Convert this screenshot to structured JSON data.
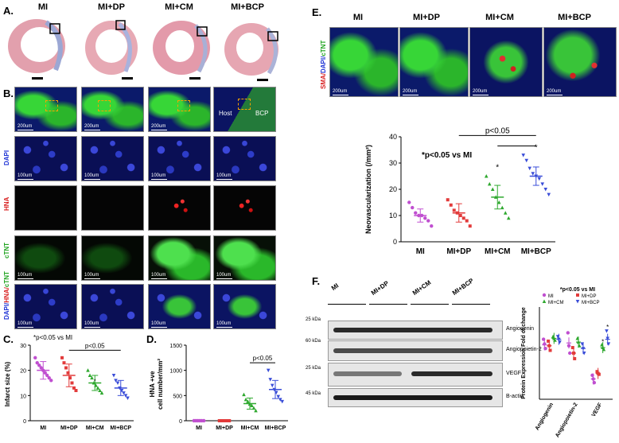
{
  "panelA": {
    "letter": "A.",
    "groups": [
      "MI",
      "MI+DP",
      "MI+CM",
      "MI+BCP"
    ]
  },
  "panelB": {
    "letter": "B.",
    "scale_200": "200um",
    "scale_100": "100um",
    "host_label": "Host",
    "bcp_label": "BCP",
    "rows": [
      "DAPI",
      "HNA",
      "cTNT"
    ],
    "merge_label_parts": [
      "DAPI/",
      "HNA/",
      "cTNT"
    ]
  },
  "panelC": {
    "letter": "C.",
    "note": "*p<0.05 vs MI",
    "pval": "p<0.05",
    "star": "*"
  },
  "panelD": {
    "letter": "D.",
    "pval": "p<0.05"
  },
  "panelE": {
    "letter": "E.",
    "groups": [
      "MI",
      "MI+DP",
      "MI+CM",
      "MI+BCP"
    ],
    "side_label_parts": [
      "SMA/",
      "DAPI/",
      "cTNT"
    ],
    "scale": "200um",
    "note": "*p<0.05 vs MI",
    "pval": "p<0.05",
    "star": "*"
  },
  "panelF": {
    "letter": "F.",
    "lanes": [
      "MI",
      "MI+DP",
      "MI+CM",
      "MI+BCP"
    ],
    "markers": [
      "25 kDa",
      "60 kDa",
      "25 kDa",
      "45 kDa"
    ],
    "bands": [
      "Angiogenin",
      "Angiopoietin-2",
      "VEGF",
      "B-actin"
    ],
    "note": "*p<0.05 vs MI",
    "star": "*"
  },
  "chart_data": [
    {
      "type": "scatter",
      "panel": "C",
      "ylabel": "Infarct size (%)",
      "categories": [
        "MI",
        "MI+DP",
        "MI+CM",
        "MI+BCP"
      ],
      "ylim": [
        0,
        30
      ],
      "yticks": [
        0,
        10,
        20,
        30
      ],
      "colors": [
        "#c04fd0",
        "#e23b3b",
        "#2ea82e",
        "#3a4dd8"
      ],
      "mean": [
        20,
        18,
        15,
        13
      ],
      "sd": [
        3.5,
        4.5,
        3,
        3
      ],
      "points": [
        [
          25,
          23,
          22,
          21,
          20,
          19,
          18,
          17,
          16
        ],
        [
          25,
          23,
          21,
          19,
          17,
          15,
          13,
          12
        ],
        [
          20,
          18,
          17,
          15,
          14,
          13,
          12,
          11
        ],
        [
          18,
          16,
          15,
          13,
          12,
          11,
          10,
          9
        ]
      ]
    },
    {
      "type": "scatter",
      "panel": "D",
      "ylabel_lines": [
        "HNA +ve",
        "cell number/mm²"
      ],
      "categories": [
        "MI",
        "MI+DP",
        "MI+CM",
        "MI+BCP"
      ],
      "ylim": [
        0,
        1500
      ],
      "yticks": [
        0,
        500,
        1000,
        1500
      ],
      "colors": [
        "#c04fd0",
        "#e23b3b",
        "#2ea82e",
        "#3a4dd8"
      ],
      "mean": [
        0,
        0,
        340,
        620
      ],
      "sd": [
        0,
        0,
        110,
        180
      ],
      "points": [
        [
          0,
          0,
          0,
          0,
          0,
          0
        ],
        [
          0,
          0,
          0,
          0,
          0,
          0
        ],
        [
          520,
          420,
          380,
          330,
          300,
          250,
          200
        ],
        [
          1000,
          820,
          700,
          620,
          560,
          480,
          420,
          380
        ]
      ]
    },
    {
      "type": "scatter",
      "panel": "E",
      "ylabel": "Neovascularization (/mm²)",
      "categories": [
        "MI",
        "MI+DP",
        "MI+CM",
        "MI+BCP"
      ],
      "ylim": [
        0,
        40
      ],
      "yticks": [
        0,
        10,
        20,
        30,
        40
      ],
      "colors": [
        "#c04fd0",
        "#e23b3b",
        "#2ea82e",
        "#3a4dd8"
      ],
      "mean": [
        10,
        11,
        17,
        25
      ],
      "sd": [
        2.5,
        3.5,
        4.5,
        3.5
      ],
      "points": [
        [
          15,
          13,
          11,
          10,
          10,
          9,
          8,
          6
        ],
        [
          16,
          14,
          12,
          11,
          10,
          9,
          8,
          6
        ],
        [
          25,
          22,
          20,
          17,
          15,
          13,
          11,
          9
        ],
        [
          33,
          31,
          28,
          26,
          25,
          24,
          22,
          20,
          18
        ]
      ]
    },
    {
      "type": "scatter",
      "panel": "F",
      "ylabel": "Protein Expression Fold of change",
      "categories": [
        "Angiogenin",
        "Angiopoietin-2",
        "VEGF"
      ],
      "series": [
        {
          "name": "MI",
          "color": "#c04fd0",
          "mean": [
            0.59,
            0.61,
            0.22
          ],
          "points": [
            [
              0.65,
              0.6,
              0.55
            ],
            [
              0.72,
              0.58,
              0.5
            ],
            [
              0.26,
              0.22,
              0.18
            ]
          ]
        },
        {
          "name": "MI+DP",
          "color": "#e23b3b",
          "mean": [
            0.58,
            0.5,
            0.28
          ],
          "points": [
            [
              0.63,
              0.58,
              0.53
            ],
            [
              0.56,
              0.5,
              0.44
            ],
            [
              0.3,
              0.28,
              0.27
            ]
          ]
        },
        {
          "name": "MI+CM",
          "color": "#2ea82e",
          "mean": [
            0.66,
            0.62,
            0.56
          ],
          "points": [
            [
              0.68,
              0.66,
              0.64
            ],
            [
              0.66,
              0.62,
              0.58
            ],
            [
              0.59,
              0.56,
              0.54
            ]
          ]
        },
        {
          "name": "MI+BCP",
          "color": "#3a4dd8",
          "mean": [
            0.65,
            0.55,
            0.65
          ],
          "points": [
            [
              0.68,
              0.65,
              0.62
            ],
            [
              0.6,
              0.55,
              0.5
            ],
            [
              0.74,
              0.66,
              0.6
            ]
          ]
        }
      ],
      "ylim": [
        0,
        1
      ]
    }
  ]
}
